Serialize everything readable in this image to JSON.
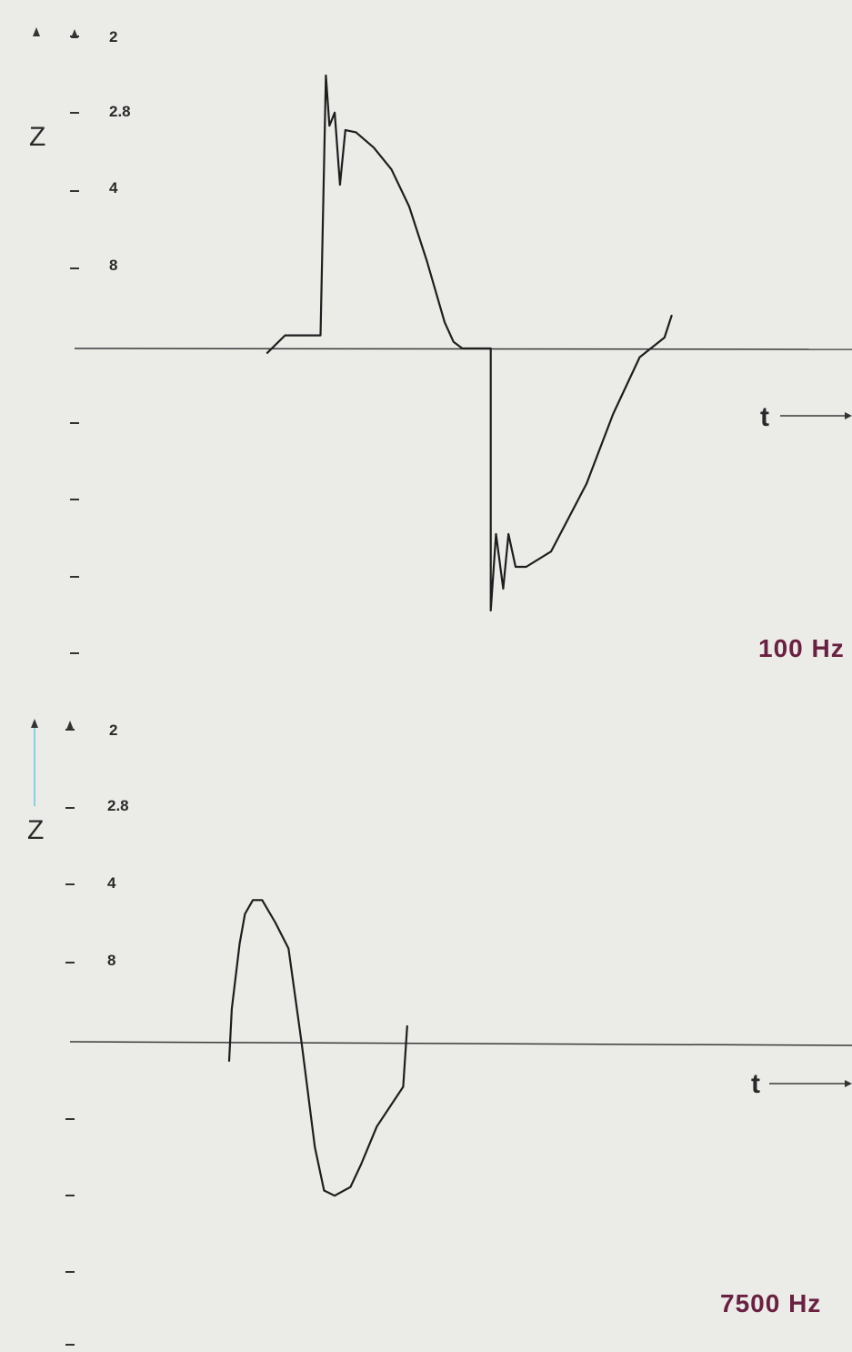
{
  "colors": {
    "background": "#ebebe8",
    "curve": "#1e1e1e",
    "frequency_label": "#6a2040",
    "axis_gradient": [
      "#d4a85a",
      "#a0207a",
      "#6a3ab0",
      "#3a78c8",
      "#2a9a5a",
      "#2a5a2a"
    ]
  },
  "icons": {
    "z_arrow": "arrow-up-icon",
    "t_arrow": "arrow-right-icon"
  },
  "chart_data": [
    {
      "type": "line",
      "title": "100 Hz",
      "ylabel": "Z",
      "xlabel": "t",
      "y_tick_labels": [
        "2",
        "2.8",
        "4",
        "8"
      ],
      "grid": false,
      "x": [
        -0.8,
        -0.7,
        -0.55,
        -0.5,
        -0.47,
        -0.45,
        -0.42,
        -0.39,
        -0.36,
        -0.3,
        -0.2,
        -0.1,
        0.0,
        0.1,
        0.2,
        0.25,
        0.3,
        0.4,
        0.46,
        0.46,
        0.49,
        0.53,
        0.56,
        0.6,
        0.66,
        0.8,
        1.0,
        1.15,
        1.3,
        1.44,
        1.48,
        1.48
      ],
      "values": [
        -0.02,
        0.06,
        0.06,
        0.06,
        1.25,
        1.02,
        1.08,
        0.75,
        1.0,
        0.99,
        0.92,
        0.82,
        0.65,
        0.4,
        0.12,
        0.03,
        0.0,
        0.0,
        0.0,
        -1.2,
        -0.85,
        -1.1,
        -0.85,
        -1.0,
        -1.0,
        -0.93,
        -0.62,
        -0.3,
        -0.04,
        0.05,
        0.15,
        0.15
      ]
    },
    {
      "type": "line",
      "title": "7500 Hz",
      "ylabel": "Z",
      "xlabel": "t",
      "y_tick_labels": [
        "2",
        "2.8",
        "4",
        "8"
      ],
      "grid": false,
      "x": [
        0.0,
        0.02,
        0.08,
        0.12,
        0.18,
        0.25,
        0.35,
        0.45,
        0.55,
        0.65,
        0.72,
        0.8,
        0.92,
        1.0,
        1.12,
        1.32,
        1.35,
        1.35
      ],
      "values": [
        -0.1,
        0.2,
        0.58,
        0.75,
        0.83,
        0.83,
        0.7,
        0.55,
        0.0,
        -0.6,
        -0.85,
        -0.88,
        -0.83,
        -0.7,
        -0.48,
        -0.25,
        0.1,
        0.1
      ]
    }
  ]
}
